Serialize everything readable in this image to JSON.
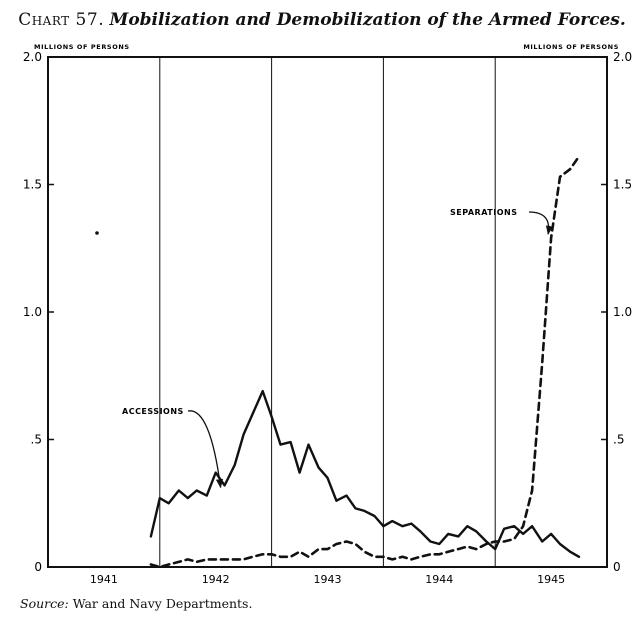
{
  "title": {
    "number": "Chart 57.",
    "name": "Mobilization and Demobilization of the Armed Forces."
  },
  "source": {
    "label": "Source:",
    "text": "War and Navy Departments."
  },
  "chart_data": {
    "type": "line",
    "unit_left": "MILLIONS OF PERSONS",
    "unit_right": "MILLIONS OF PERSONS",
    "y_ticks_left": [
      "2.0",
      "1.5",
      "1.0",
      ".5",
      "0"
    ],
    "y_ticks_right": [
      "2.0",
      "1.5",
      "1.0",
      ".5",
      "0"
    ],
    "ylim": [
      0,
      2.0
    ],
    "xlim": [
      1941.0,
      1946.0
    ],
    "x_ticks": [
      "1941",
      "1942",
      "1943",
      "1944",
      "1945"
    ],
    "grid": "vertical lines at year boundaries",
    "series": [
      {
        "name": "ACCESSIONS",
        "style": "solid",
        "color": "#111111",
        "x": [
          1941.92,
          1942.0,
          1942.08,
          1942.17,
          1942.25,
          1942.33,
          1942.42,
          1942.5,
          1942.58,
          1942.67,
          1942.75,
          1942.83,
          1942.92,
          1943.0,
          1943.08,
          1943.17,
          1943.25,
          1943.33,
          1943.42,
          1943.5,
          1943.58,
          1943.67,
          1943.75,
          1943.83,
          1943.92,
          1944.0,
          1944.08,
          1944.17,
          1944.25,
          1944.33,
          1944.42,
          1944.5,
          1944.58,
          1944.67,
          1944.75,
          1944.83,
          1944.92,
          1945.0,
          1945.08,
          1945.17,
          1945.25,
          1945.33,
          1945.42,
          1945.5,
          1945.58,
          1945.67,
          1945.75
        ],
        "values": [
          0.12,
          0.27,
          0.25,
          0.3,
          0.27,
          0.3,
          0.28,
          0.37,
          0.32,
          0.4,
          0.52,
          0.6,
          0.69,
          0.59,
          0.48,
          0.49,
          0.37,
          0.48,
          0.39,
          0.35,
          0.26,
          0.28,
          0.23,
          0.22,
          0.2,
          0.16,
          0.18,
          0.16,
          0.17,
          0.14,
          0.1,
          0.09,
          0.13,
          0.12,
          0.16,
          0.14,
          0.1,
          0.07,
          0.15,
          0.16,
          0.13,
          0.16,
          0.1,
          0.13,
          0.09,
          0.06,
          0.04
        ]
      },
      {
        "name": "SEPARATIONS",
        "style": "dashed",
        "color": "#111111",
        "x": [
          1941.92,
          1942.0,
          1942.08,
          1942.17,
          1942.25,
          1942.33,
          1942.42,
          1942.5,
          1942.58,
          1942.67,
          1942.75,
          1942.83,
          1942.92,
          1943.0,
          1943.08,
          1943.17,
          1943.25,
          1943.33,
          1943.42,
          1943.5,
          1943.58,
          1943.67,
          1943.75,
          1943.83,
          1943.92,
          1944.0,
          1944.08,
          1944.17,
          1944.25,
          1944.33,
          1944.42,
          1944.5,
          1944.58,
          1944.67,
          1944.75,
          1944.83,
          1944.92,
          1945.0,
          1945.08,
          1945.17,
          1945.25,
          1945.33,
          1945.42,
          1945.5,
          1945.58,
          1945.67,
          1945.75
        ],
        "values": [
          0.01,
          0.0,
          0.01,
          0.02,
          0.03,
          0.02,
          0.03,
          0.03,
          0.03,
          0.03,
          0.03,
          0.04,
          0.05,
          0.05,
          0.04,
          0.04,
          0.06,
          0.04,
          0.07,
          0.07,
          0.09,
          0.1,
          0.09,
          0.06,
          0.04,
          0.04,
          0.03,
          0.04,
          0.03,
          0.04,
          0.05,
          0.05,
          0.06,
          0.07,
          0.08,
          0.07,
          0.09,
          0.1,
          0.1,
          0.11,
          0.16,
          0.3,
          0.8,
          1.29,
          1.53,
          1.56,
          1.61
        ]
      }
    ],
    "annotations": [
      {
        "text": "ACCESSIONS",
        "series": "ACCESSIONS",
        "x": 1942.6,
        "y": 0.62
      },
      {
        "text": "SEPARATIONS",
        "series": "SEPARATIONS",
        "x": 1945.05,
        "y": 1.35
      }
    ]
  }
}
